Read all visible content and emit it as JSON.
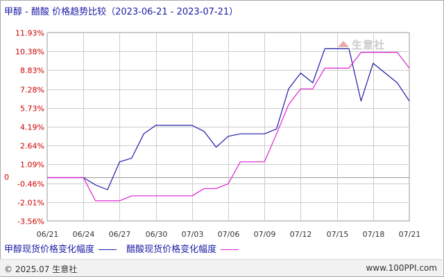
{
  "header": {
    "title": "甲醇 - 醋酸 价格趋势比较（2023-06-21 - 2023-07-21）"
  },
  "watermark": {
    "text": "生意社"
  },
  "legend": [
    {
      "label": "甲醇现货价格变化幅度",
      "color": "#1a1aa6"
    },
    {
      "label": "醋酸现货价格变化幅度",
      "color": "#e020d0"
    }
  ],
  "footer": {
    "copyright": "© 2025.07 生意社",
    "site": "www.100PPI.com"
  },
  "colors": {
    "series_methanol": "#1a1aa6",
    "series_acetic": "#e020d0",
    "axis_label": "#cc0000",
    "grid": "#cccccc",
    "zero_line": "#999999"
  },
  "chart_data": {
    "type": "line",
    "xlabel": "",
    "ylabel": "",
    "x_ticks": [
      "06/21",
      "06/24",
      "06/27",
      "06/30",
      "07/03",
      "07/06",
      "07/09",
      "07/12",
      "07/15",
      "07/18",
      "07/21"
    ],
    "y_ticks": [
      "11.93%",
      "10.38%",
      "8.83%",
      "7.28%",
      "5.73%",
      "4.19%",
      "2.64%",
      "1.09%",
      "-0.46%",
      "-2.01%",
      "-3.56%"
    ],
    "y_tick_values": [
      11.93,
      10.38,
      8.83,
      7.28,
      5.73,
      4.19,
      2.64,
      1.09,
      -0.46,
      -2.01,
      -3.56
    ],
    "zero_label": "0",
    "ylim": [
      -3.56,
      11.93
    ],
    "xlim_days": [
      0,
      30
    ],
    "grid": true,
    "legend_position": "bottom-left",
    "series": [
      {
        "name": "甲醇现货价格变化幅度",
        "points": [
          [
            0,
            0
          ],
          [
            1,
            0
          ],
          [
            2,
            0
          ],
          [
            3,
            0
          ],
          [
            4,
            -0.6
          ],
          [
            5,
            -1.0
          ],
          [
            6,
            1.3
          ],
          [
            7,
            1.6
          ],
          [
            8,
            3.6
          ],
          [
            9,
            4.3
          ],
          [
            10,
            4.3
          ],
          [
            11,
            4.3
          ],
          [
            12,
            4.3
          ],
          [
            13,
            3.8
          ],
          [
            14,
            2.5
          ],
          [
            15,
            3.4
          ],
          [
            16,
            3.6
          ],
          [
            17,
            3.6
          ],
          [
            18,
            3.6
          ],
          [
            19,
            4.0
          ],
          [
            20,
            7.3
          ],
          [
            21,
            8.6
          ],
          [
            22,
            7.8
          ],
          [
            23,
            10.6
          ],
          [
            24,
            10.6
          ],
          [
            25,
            10.6
          ],
          [
            26,
            6.3
          ],
          [
            27,
            9.4
          ],
          [
            28,
            8.6
          ],
          [
            29,
            7.8
          ],
          [
            30,
            6.3
          ]
        ]
      },
      {
        "name": "醋酸现货价格变化幅度",
        "points": [
          [
            0,
            0
          ],
          [
            1,
            0
          ],
          [
            2,
            0
          ],
          [
            3,
            0
          ],
          [
            4,
            -1.9
          ],
          [
            5,
            -1.9
          ],
          [
            6,
            -1.9
          ],
          [
            7,
            -1.5
          ],
          [
            8,
            -1.5
          ],
          [
            9,
            -1.5
          ],
          [
            10,
            -1.5
          ],
          [
            11,
            -1.5
          ],
          [
            12,
            -1.5
          ],
          [
            13,
            -0.9
          ],
          [
            14,
            -0.9
          ],
          [
            15,
            -0.5
          ],
          [
            16,
            1.3
          ],
          [
            17,
            1.3
          ],
          [
            18,
            1.3
          ],
          [
            19,
            3.6
          ],
          [
            20,
            6.0
          ],
          [
            21,
            7.3
          ],
          [
            22,
            7.3
          ],
          [
            23,
            9.0
          ],
          [
            24,
            9.0
          ],
          [
            25,
            9.0
          ],
          [
            26,
            10.3
          ],
          [
            27,
            10.3
          ],
          [
            28,
            10.3
          ],
          [
            29,
            10.3
          ],
          [
            30,
            9.0
          ]
        ]
      }
    ]
  }
}
